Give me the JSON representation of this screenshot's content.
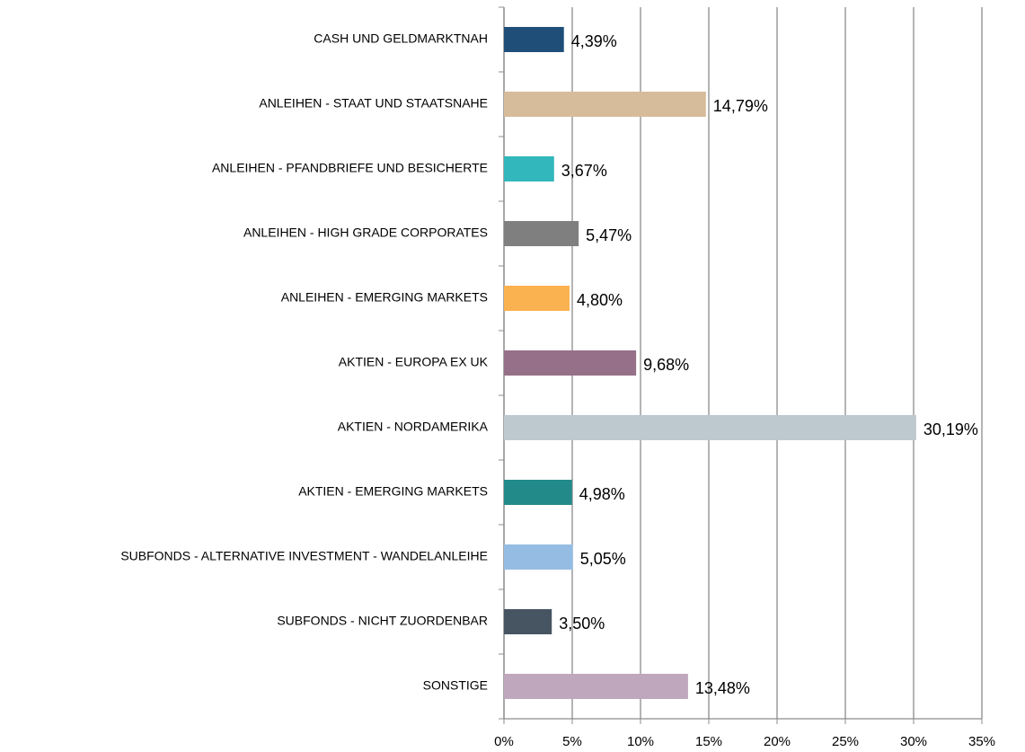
{
  "chart_data": {
    "type": "bar",
    "orientation": "horizontal",
    "categories": [
      "CASH UND GELDMARKTNAH",
      "ANLEIHEN - STAAT UND STAATSNAHE",
      "ANLEIHEN - PFANDBRIEFE UND BESICHERTE",
      "ANLEIHEN - HIGH GRADE CORPORATES",
      "ANLEIHEN - EMERGING MARKETS",
      "AKTIEN - EUROPA EX UK",
      "AKTIEN - NORDAMERIKA",
      "AKTIEN - EMERGING MARKETS",
      "SUBFONDS - ALTERNATIVE INVESTMENT - WANDELANLEIHE",
      "SUBFONDS - NICHT ZUORDENBAR",
      "SONSTIGE"
    ],
    "values": [
      4.39,
      14.79,
      3.67,
      5.47,
      4.8,
      9.68,
      30.19,
      4.98,
      5.05,
      3.5,
      13.48
    ],
    "value_labels": [
      "4,39%",
      "14,79%",
      "3,67%",
      "5,47%",
      "4,80%",
      "9,68%",
      "30,19%",
      "4,98%",
      "5,05%",
      "3,50%",
      "13,48%"
    ],
    "colors": [
      "#1f4e79",
      "#d6bc9a",
      "#31b7bc",
      "#7f7f7f",
      "#f9b24f",
      "#967089",
      "#bec8cf",
      "#238a8a",
      "#95bde3",
      "#475461",
      "#bfa7bd"
    ],
    "xlim": [
      0,
      35
    ],
    "xticks": [
      {
        "value": 0,
        "label": "0%"
      },
      {
        "value": 5,
        "label": "5%"
      },
      {
        "value": 10,
        "label": "10%"
      },
      {
        "value": 15,
        "label": "15%"
      },
      {
        "value": 20,
        "label": "20%"
      },
      {
        "value": 25,
        "label": "25%"
      },
      {
        "value": 30,
        "label": "30%"
      },
      {
        "value": 35,
        "label": "35%"
      }
    ],
    "grid": true
  }
}
